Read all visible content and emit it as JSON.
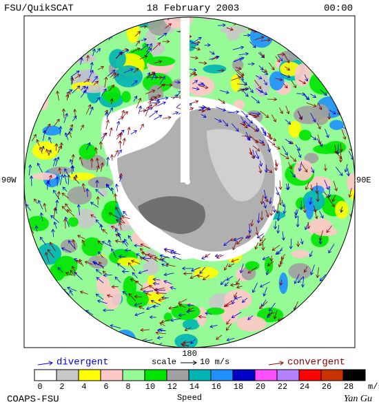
{
  "header": {
    "left": "FSU/QuikSCAT",
    "center": "18 February 2003",
    "right": "00:00"
  },
  "map_labels": {
    "left": "90W",
    "right": "90E",
    "bottom": "180"
  },
  "legend": {
    "divergent": "divergent",
    "scale": "scale",
    "scale_value": "10 m/s",
    "convergent": "convergent"
  },
  "colorbar": {
    "ticks": [
      0,
      2,
      4,
      6,
      8,
      10,
      12,
      14,
      16,
      18,
      20,
      22,
      24,
      26,
      28
    ],
    "unit": "m/s",
    "title": "Speed",
    "colors": [
      "#ffffff",
      "#c8c8c8",
      "#ffff00",
      "#ffc8c8",
      "#96fa96",
      "#00e600",
      "#a0a0a0",
      "#00b4b4",
      "#1e90ff",
      "#0000c8",
      "#ff50ff",
      "#b482ff",
      "#ff0000",
      "#c83200",
      "#000000"
    ]
  },
  "footer": {
    "left": "COAPS-FSU",
    "right": "Yan Gu"
  }
}
